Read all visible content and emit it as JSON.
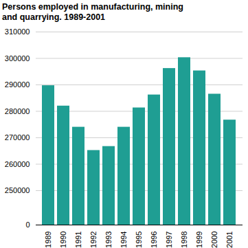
{
  "chart_data": {
    "type": "bar",
    "title": "Persons employed in manufacturing, mining and quarrying. 1989-2001",
    "categories": [
      "1989",
      "1990",
      "1991",
      "1992",
      "1993",
      "1994",
      "1995",
      "1996",
      "1997",
      "1998",
      "1999",
      "2000",
      "2001"
    ],
    "values": [
      289700,
      282000,
      274000,
      265200,
      266700,
      274000,
      281300,
      286200,
      296200,
      300300,
      295300,
      286500,
      276700
    ],
    "color": "#1f9e93",
    "ylim": [
      0,
      310000
    ],
    "yticks": [
      0,
      250000,
      260000,
      270000,
      280000,
      290000,
      300000,
      310000
    ],
    "grid": true
  }
}
